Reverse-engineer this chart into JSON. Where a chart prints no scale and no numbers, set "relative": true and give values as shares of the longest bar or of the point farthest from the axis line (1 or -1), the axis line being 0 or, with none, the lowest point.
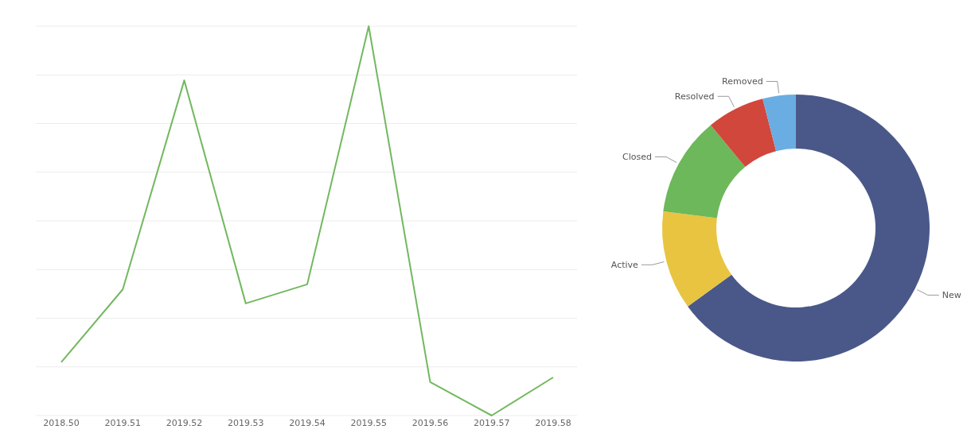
{
  "chart_data": [
    {
      "type": "line",
      "relative": true,
      "grid": "y",
      "categories": [
        "2018.50",
        "2019.51",
        "2019.52",
        "2019.53",
        "2019.54",
        "2019.55",
        "2019.56",
        "2019.57",
        "2019.58"
      ],
      "series": [
        {
          "color": "#72b85f",
          "values": [
            0.137,
            0.324,
            0.861,
            0.288,
            0.337,
            1,
            0.086,
            0,
            0.098
          ]
        }
      ]
    },
    {
      "type": "donut",
      "categories": [
        "New",
        "Active",
        "Closed",
        "Resolved",
        "Removed"
      ],
      "values": [
        65,
        12,
        12,
        7,
        4
      ],
      "colors": [
        "#4a5889",
        "#e8c441",
        "#6db85a",
        "#d1473c",
        "#6aade2"
      ]
    }
  ]
}
